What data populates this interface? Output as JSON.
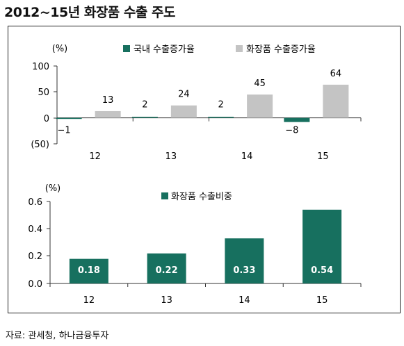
{
  "title": "2012~15년 화장품 수출 주도",
  "source": "자료: 관세청, 하나금융투자",
  "colors": {
    "dark_green": "#17705f",
    "gray": "#c4c4c4",
    "axis": "#333333"
  },
  "chart_data": [
    {
      "type": "bar",
      "unit_label": "(%)",
      "categories": [
        "12",
        "13",
        "14",
        "15"
      ],
      "y_ticks": [
        "100",
        "50",
        "0",
        "(50)"
      ],
      "ylim": [
        -50,
        100
      ],
      "series": [
        {
          "name": "국내 수출증가율",
          "values": [
            -1,
            2,
            2,
            -8
          ],
          "labels": [
            "−1",
            "2",
            "2",
            "−8"
          ],
          "color": "#17705f"
        },
        {
          "name": "화장품 수출증가율",
          "values": [
            13,
            24,
            45,
            64
          ],
          "labels": [
            "13",
            "24",
            "45",
            "64"
          ],
          "color": "#c4c4c4"
        }
      ],
      "legend": "top"
    },
    {
      "type": "bar",
      "unit_label": "(%)",
      "categories": [
        "12",
        "13",
        "14",
        "15"
      ],
      "y_ticks": [
        "0.6",
        "0.4",
        "0.2",
        "0.0"
      ],
      "ylim": [
        0,
        0.6
      ],
      "series": [
        {
          "name": "화장품 수출비중",
          "values": [
            0.18,
            0.22,
            0.33,
            0.54
          ],
          "labels": [
            "0.18",
            "0.22",
            "0.33",
            "0.54"
          ],
          "color": "#17705f"
        }
      ],
      "legend": "top"
    }
  ]
}
